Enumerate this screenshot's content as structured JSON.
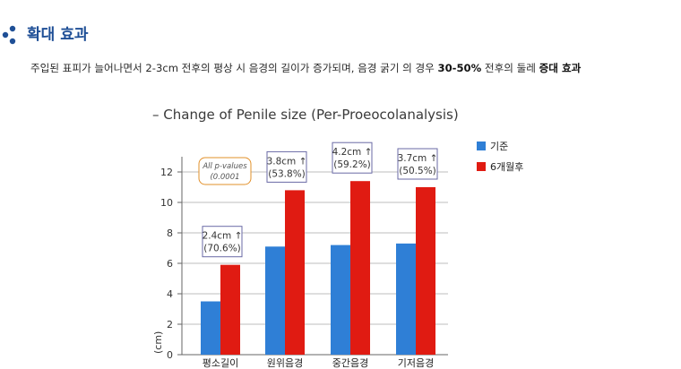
{
  "section": {
    "title": "확대 효과",
    "description_parts": [
      {
        "text": "주입된 표피가 늘어나면서 2-3cm 전후의 평상 시 음경의 길이가 증가되며, 음경 굵기 의 경우 ",
        "bold": false
      },
      {
        "text": "30-50%",
        "bold": true
      },
      {
        "text": " 전후의 둘레 ",
        "bold": false
      },
      {
        "text": "증대 효과",
        "bold": true
      }
    ]
  },
  "colors": {
    "title_blue": "#1f4f96",
    "baseline_bar": "#2f7fd6",
    "after_bar": "#e01b12",
    "label_box_border": "#6a6aa6",
    "note_border": "#e2902a"
  },
  "chart_data": {
    "type": "bar",
    "title": "– Change of Penile size (Per-Proeocolanalysis)",
    "ylabel": "(cm)",
    "ylim": [
      0,
      13
    ],
    "yticks": [
      0,
      2,
      4,
      6,
      8,
      10,
      12
    ],
    "categories": [
      "평소길이",
      "원위음경",
      "중간음경",
      "기저음경"
    ],
    "series": [
      {
        "name": "기준",
        "values": [
          3.5,
          7.1,
          7.2,
          7.3
        ]
      },
      {
        "name": "6개월후",
        "values": [
          5.9,
          10.8,
          11.4,
          11.0
        ]
      }
    ],
    "annotations": [
      {
        "line1": "2.4cm ↑",
        "line2": "(70.6%)"
      },
      {
        "line1": "3.8cm ↑",
        "line2": "(53.8%)"
      },
      {
        "line1": "4.2cm ↑",
        "line2": "(59.2%)"
      },
      {
        "line1": "3.7cm ↑",
        "line2": "(50.5%)"
      }
    ],
    "note": {
      "line1": "All p-values",
      "line2": "(0.0001"
    },
    "legend_position": "top-right"
  }
}
